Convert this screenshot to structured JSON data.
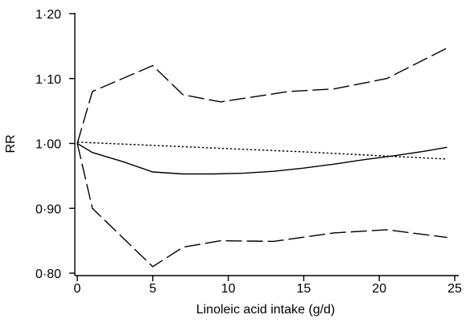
{
  "chart_data": {
    "type": "line",
    "xlabel": "Linoleic acid intake (g/d)",
    "ylabel": "RR",
    "xlim": [
      0,
      25
    ],
    "ylim": [
      0.8,
      1.2
    ],
    "xticks": [
      0,
      5,
      10,
      15,
      20,
      25
    ],
    "xtick_labels": [
      "0",
      "5",
      "10",
      "15",
      "20",
      "25"
    ],
    "yticks": [
      0.8,
      0.9,
      1.0,
      1.1,
      1.2
    ],
    "ytick_labels": [
      "0·80",
      "0·90",
      "1·00",
      "1·10",
      "1·20"
    ],
    "grid": false,
    "series": [
      {
        "style": "solid",
        "x": [
          0,
          1,
          3,
          5,
          7,
          9,
          11,
          13,
          15,
          17,
          19,
          21,
          23,
          24.5
        ],
        "y": [
          1.0,
          0.986,
          0.972,
          0.956,
          0.953,
          0.953,
          0.954,
          0.957,
          0.962,
          0.968,
          0.975,
          0.981,
          0.988,
          0.994
        ]
      },
      {
        "style": "dotted",
        "x": [
          0,
          5,
          10,
          15,
          20,
          24.5
        ],
        "y": [
          1.002,
          0.997,
          0.992,
          0.987,
          0.981,
          0.976
        ]
      },
      {
        "style": "dashed",
        "x": [
          0,
          1,
          5,
          7,
          9.5,
          14,
          17,
          20.5,
          24.5
        ],
        "y": [
          1.0,
          1.08,
          1.12,
          1.075,
          1.064,
          1.08,
          1.084,
          1.1,
          1.147
        ]
      },
      {
        "style": "dashed",
        "x": [
          0,
          1,
          5,
          7,
          9.5,
          13,
          17,
          20.5,
          24.5
        ],
        "y": [
          1.0,
          0.9,
          0.81,
          0.84,
          0.85,
          0.849,
          0.862,
          0.867,
          0.855
        ]
      }
    ]
  }
}
